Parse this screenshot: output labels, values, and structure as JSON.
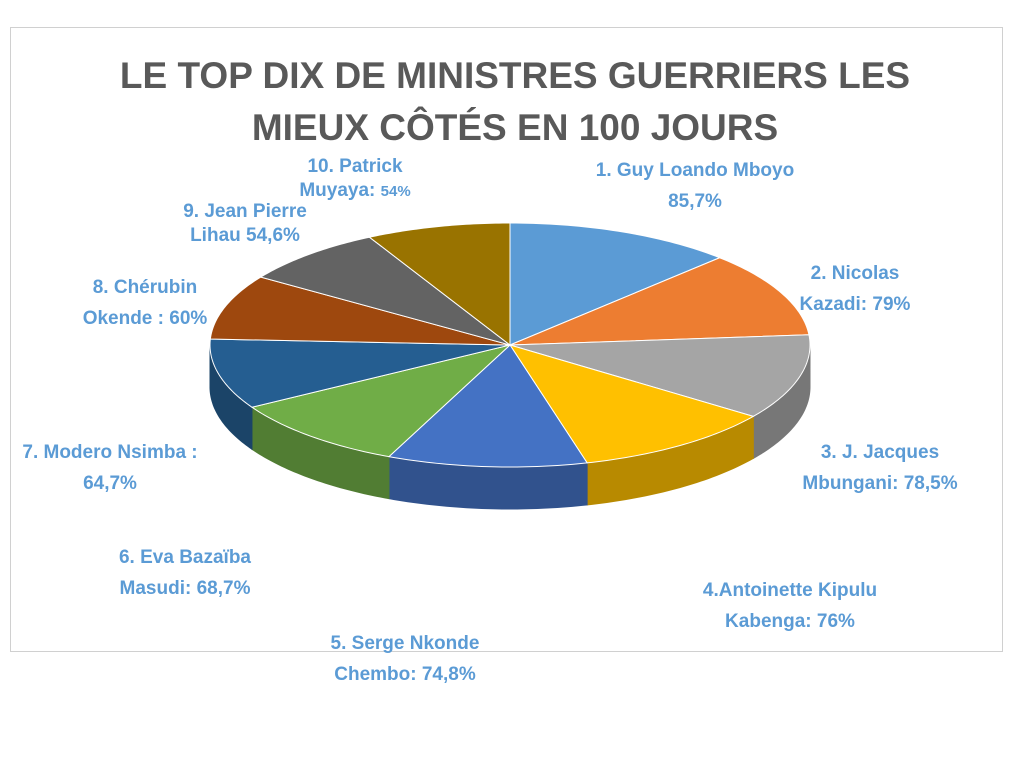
{
  "chart_data": {
    "type": "pie3d",
    "title": "LE TOP DIX DE MINISTRES GUERRIERS LES MIEUX CÔTÉS EN 100 JOURS",
    "categories": [
      "1. Guy Loando Mboyo",
      "2. Nicolas Kazadi:",
      "3. J. Jacques Mbungani:",
      "4.Antoinette Kipulu Kabenga:",
      "5. Serge Nkonde Chembo:",
      "6. Eva Bazaïba Masudi:",
      "7. Modero Nsimba :",
      "8. Chérubin Okende :",
      "9. Jean Pierre Lihau",
      "10. Patrick Muyaya:"
    ],
    "values": [
      85.7,
      79,
      78.5,
      76,
      74.8,
      68.7,
      64.7,
      60,
      54.6,
      54
    ],
    "value_labels": [
      "85,7%",
      "79%",
      "78,5%",
      "76%",
      "74,8%",
      "68,7%",
      "64,7%",
      "60%",
      "54,6%",
      "54%"
    ],
    "colors": [
      "#5b9bd5",
      "#ed7d31",
      "#a5a5a5",
      "#ffc000",
      "#4472c4",
      "#70ad47",
      "#255e91",
      "#9e480e",
      "#636363",
      "#997300"
    ]
  }
}
